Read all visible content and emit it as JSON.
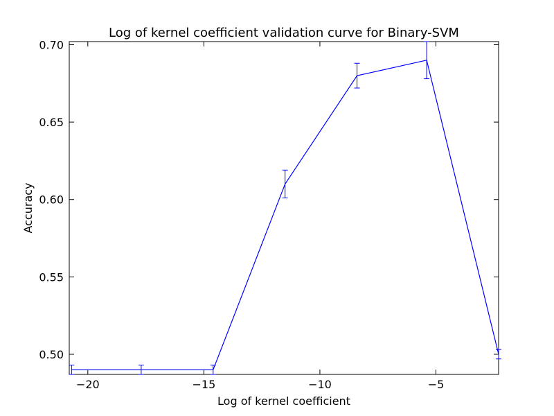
{
  "chart_data": {
    "type": "line",
    "title": "Log of kernel coefficient validation curve for Binary-SVM",
    "xlabel": "Log of kernel coefficient",
    "ylabel": "Accuracy",
    "xlim": [
      -20.8,
      -2.3
    ],
    "ylim": [
      0.487,
      0.702
    ],
    "grid": false,
    "legend": "none",
    "x_ticks": [
      -20,
      -15,
      -10,
      -5
    ],
    "x_tick_labels": [
      "−20",
      "−15",
      "−10",
      "−5"
    ],
    "y_ticks": [
      0.5,
      0.55,
      0.6,
      0.65,
      0.7
    ],
    "y_tick_labels": [
      "0.50",
      "0.55",
      "0.60",
      "0.65",
      "0.70"
    ],
    "series": [
      {
        "x": [
          -20.7,
          -17.7,
          -14.6,
          -11.5,
          -8.4,
          -5.4,
          -2.3
        ],
        "y": [
          0.49,
          0.49,
          0.49,
          0.61,
          0.68,
          0.69,
          0.5
        ],
        "err": [
          0.003,
          0.003,
          0.003,
          0.009,
          0.008,
          0.012,
          0.003
        ],
        "color": "#0000ff"
      }
    ]
  }
}
